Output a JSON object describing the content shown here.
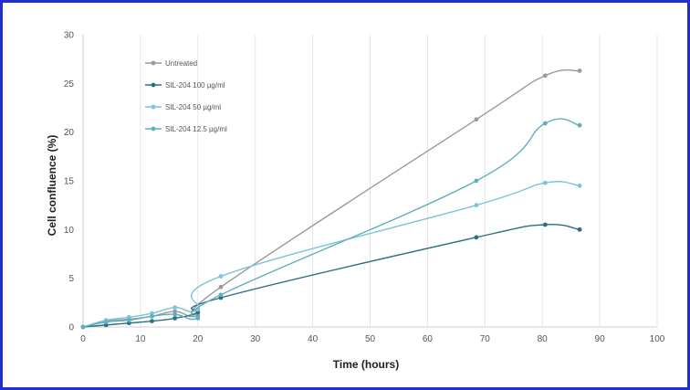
{
  "chart_data": {
    "type": "line",
    "title": "",
    "xlabel": "Time (hours)",
    "ylabel": "Cell confluence (%)",
    "xlim": [
      0,
      100
    ],
    "ylim": [
      0,
      30
    ],
    "xticks": [
      0,
      10,
      20,
      30,
      40,
      50,
      60,
      70,
      80,
      90,
      100
    ],
    "yticks": [
      0,
      5,
      10,
      15,
      20,
      25,
      30
    ],
    "grid": "vertical",
    "legend_position": "top-left",
    "series": [
      {
        "name": "Untreated",
        "color": "#9a9a9a",
        "x": [
          0,
          4,
          8,
          12,
          16,
          20,
          24,
          68.5,
          80.5,
          86.5
        ],
        "y": [
          0,
          0.6,
          0.8,
          1.1,
          1.6,
          1.2,
          4.1,
          21.3,
          25.8,
          26.3
        ]
      },
      {
        "name": "SIL-204 100 µg/ml",
        "color": "#2e6f86",
        "x": [
          0,
          4,
          8,
          12,
          16,
          20,
          24,
          68.5,
          80.5,
          86.5
        ],
        "y": [
          0,
          0.2,
          0.4,
          0.6,
          0.9,
          1.5,
          3.0,
          9.2,
          10.5,
          10.0
        ]
      },
      {
        "name": "SIL-204 50 µg/ml",
        "color": "#7cc4dd",
        "x": [
          0,
          4,
          8,
          12,
          16,
          20,
          24,
          68.5,
          80.5,
          86.5
        ],
        "y": [
          0,
          0.7,
          1.0,
          1.4,
          2.0,
          1.8,
          5.2,
          12.5,
          14.8,
          14.5
        ]
      },
      {
        "name": "SIL-204 12.5 µg/ml",
        "color": "#5fb0bd",
        "x": [
          0,
          4,
          8,
          12,
          16,
          20,
          24,
          68.5,
          80.5,
          86.5
        ],
        "y": [
          0,
          0.5,
          0.7,
          1.1,
          1.3,
          0.9,
          3.3,
          15.0,
          20.9,
          20.7
        ]
      }
    ]
  }
}
